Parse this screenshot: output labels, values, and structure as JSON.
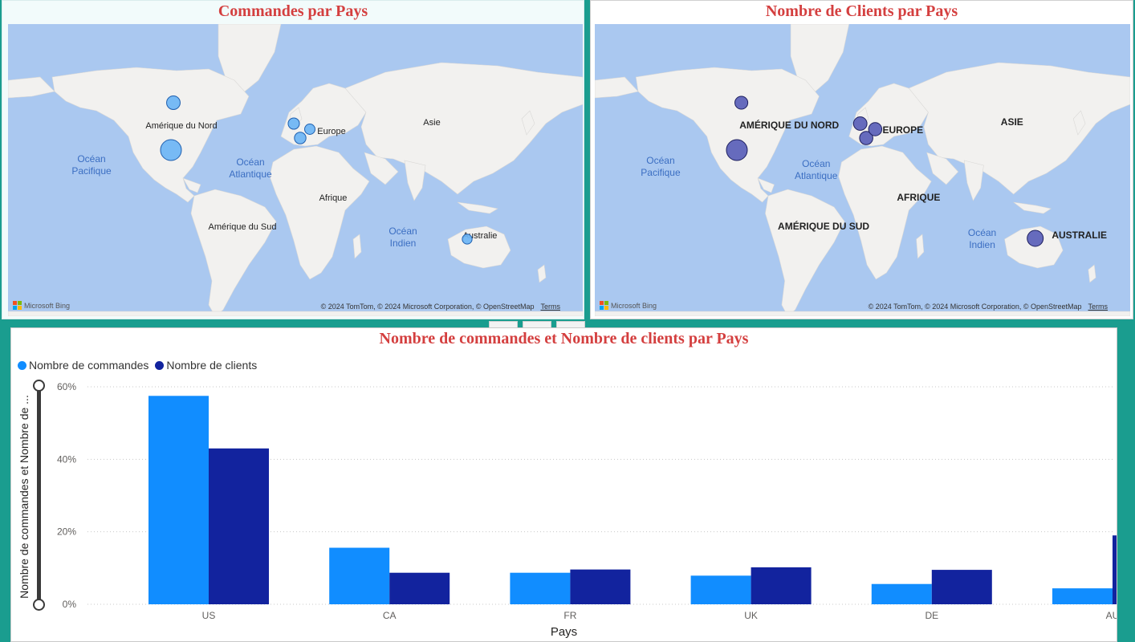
{
  "maps": {
    "orders": {
      "title": "Commandes par Pays",
      "labels": {
        "north_america": "Amérique du Nord",
        "south_america": "Amérique du Sud",
        "europe": "Europe",
        "asia": "Asie",
        "africa": "Afrique",
        "australia": "Australie",
        "pacific": "Océan\nPacifique",
        "atlantic": "Océan\nAtlantique",
        "indian": "Océan\nIndien"
      },
      "bubble_color": "#6cb5f5",
      "bubbles": [
        {
          "country": "US",
          "value": 57.5
        },
        {
          "country": "CA",
          "value": 15.6
        },
        {
          "country": "FR",
          "value": 8.7
        },
        {
          "country": "UK",
          "value": 7.9
        },
        {
          "country": "DE",
          "value": 5.6
        },
        {
          "country": "AU",
          "value": 4.4
        }
      ]
    },
    "clients": {
      "title": "Nombre de Clients par Pays",
      "labels": {
        "north_america": "AMÉRIQUE DU NORD",
        "south_america": "AMÉRIQUE DU SUD",
        "europe": "EUROPE",
        "asia": "ASIE",
        "africa": "AFRIQUE",
        "australia": "AUSTRALIE",
        "pacific": "Océan\nPacifique",
        "atlantic": "Océan\nAtlantique",
        "indian": "Océan\nIndien"
      },
      "bubble_color": "#5a5fb8",
      "bubbles": [
        {
          "country": "US",
          "value": 43.0
        },
        {
          "country": "CA",
          "value": 8.7
        },
        {
          "country": "FR",
          "value": 9.6
        },
        {
          "country": "UK",
          "value": 10.2
        },
        {
          "country": "DE",
          "value": 9.5
        },
        {
          "country": "AU",
          "value": 19.0
        }
      ]
    },
    "bing_label": "Microsoft Bing",
    "attribution": "© 2024 TomTom, © 2024 Microsoft Corporation, © OpenStreetMap",
    "terms": "Terms"
  },
  "chart_data": {
    "type": "bar",
    "title": "Nombre de commandes et Nombre de clients par Pays",
    "xlabel": "Pays",
    "ylabel": "Nombre de commandes et Nombre de ...",
    "categories": [
      "US",
      "CA",
      "FR",
      "UK",
      "DE",
      "AU"
    ],
    "series": [
      {
        "name": "Nombre de commandes",
        "color": "#118dff",
        "values": [
          57.5,
          15.6,
          8.7,
          7.9,
          5.6,
          4.4
        ]
      },
      {
        "name": "Nombre de clients",
        "color": "#12239e",
        "values": [
          43.0,
          8.7,
          9.6,
          10.2,
          9.5,
          19.0
        ]
      }
    ],
    "ylim": [
      0,
      60
    ],
    "yticks": [
      "0%",
      "20%",
      "40%",
      "60%"
    ],
    "ytick_values": [
      0,
      20,
      40,
      60
    ],
    "grid": true,
    "legend": "top-left"
  }
}
